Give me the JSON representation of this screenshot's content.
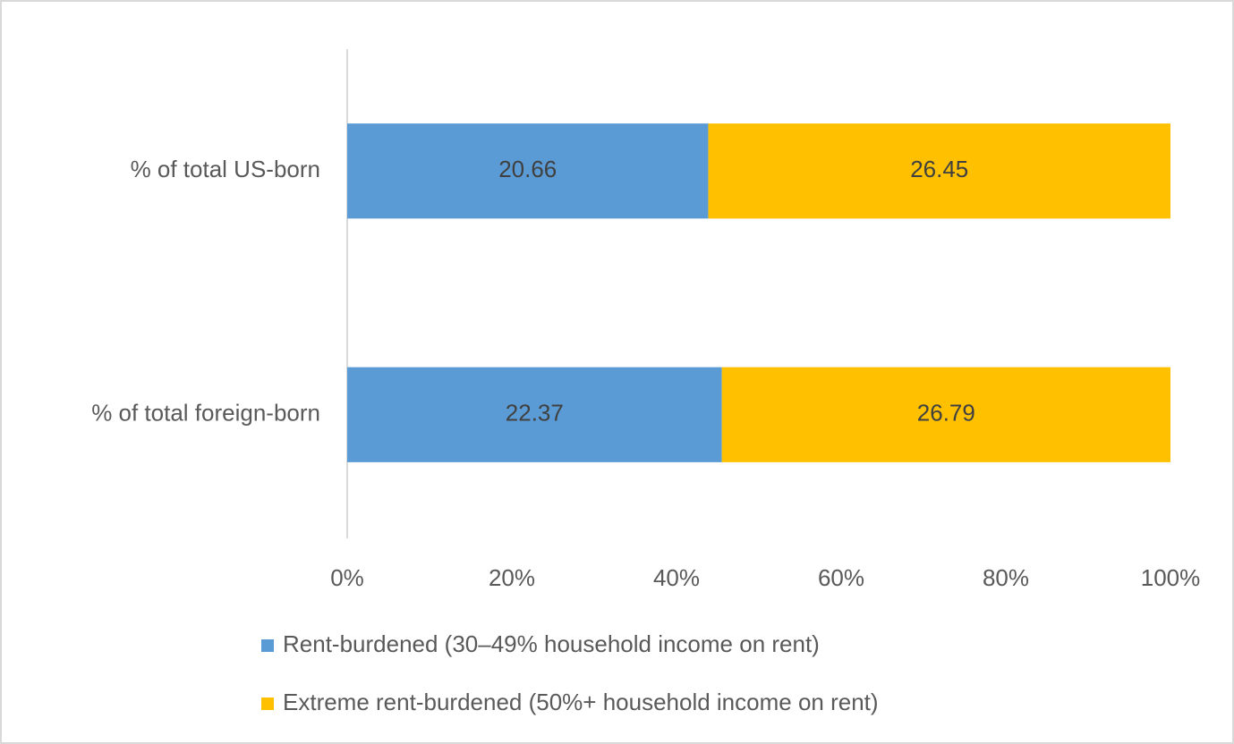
{
  "chart_data": {
    "type": "bar",
    "orientation": "horizontal",
    "stacking": "percent",
    "categories": [
      "% of total US-born",
      "% of total foreign-born"
    ],
    "series": [
      {
        "name": "Rent-burdened (30–49% household income on rent)",
        "color": "#5b9bd5",
        "values": [
          20.66,
          22.37
        ]
      },
      {
        "name": "Extreme rent-burdened (50%+ household income on rent)",
        "color": "#ffc000",
        "values": [
          26.45,
          26.79
        ]
      }
    ],
    "xlim": [
      0,
      100
    ],
    "xticks": [
      {
        "value": 0,
        "label": "0%"
      },
      {
        "value": 20,
        "label": "20%"
      },
      {
        "value": 40,
        "label": "40%"
      },
      {
        "value": 60,
        "label": "60%"
      },
      {
        "value": 80,
        "label": "80%"
      },
      {
        "value": 100,
        "label": "100%"
      }
    ],
    "grid": false,
    "legend": "bottom"
  }
}
